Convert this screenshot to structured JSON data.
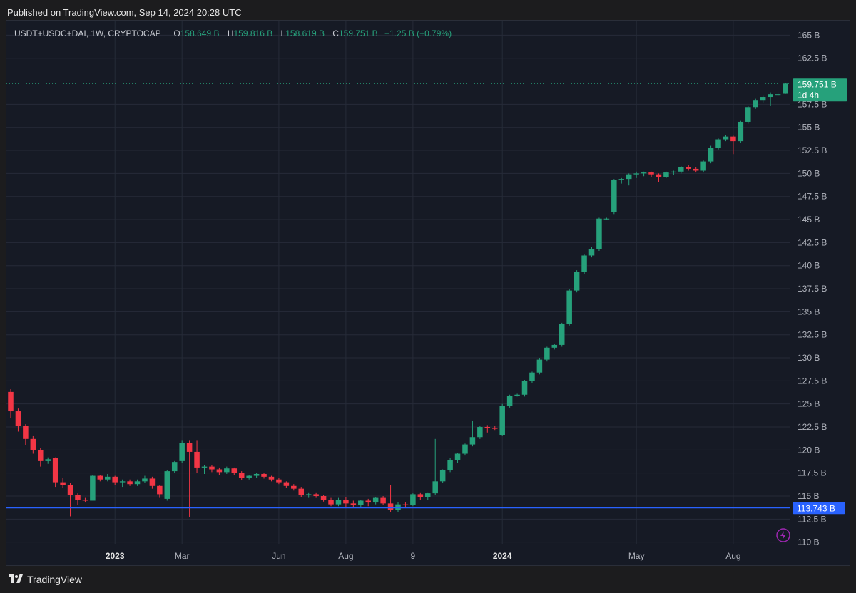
{
  "header": {
    "published": "Published on TradingView.com, Sep 14, 2024 20:28 UTC"
  },
  "legend": {
    "symbol": "USDT+USDC+DAI, 1W, CRYPTOCAP",
    "o_label": "O",
    "o_value": "158.649 B",
    "h_label": "H",
    "h_value": "159.816 B",
    "l_label": "L",
    "l_value": "158.619 B",
    "c_label": "C",
    "c_value": "159.751 B",
    "change": "+1.25 B (+0.79%)"
  },
  "price_badge": {
    "value": "159.751 B",
    "countdown": "1d 4h"
  },
  "hline_badge": {
    "value": "113.743 B"
  },
  "footer": {
    "brand": "TradingView"
  },
  "colors": {
    "up": "#26a17b",
    "down": "#f23645",
    "hline": "#2962ff",
    "grid": "#262b38",
    "axis_text": "#b2b5be"
  },
  "chart_data": {
    "type": "candlestick",
    "units": "B",
    "ylim": [
      107.5,
      166.5
    ],
    "yticks": [
      110,
      112.5,
      115,
      117.5,
      120,
      122.5,
      125,
      127.5,
      130,
      132.5,
      135,
      137.5,
      140,
      142.5,
      145,
      147.5,
      150,
      152.5,
      155,
      157.5,
      162.5,
      165
    ],
    "ytick_labels": [
      "110 B",
      "112.5 B",
      "115 B",
      "117.5 B",
      "120 B",
      "122.5 B",
      "125 B",
      "127.5 B",
      "130 B",
      "132.5 B",
      "135 B",
      "137.5 B",
      "140 B",
      "142.5 B",
      "145 B",
      "147.5 B",
      "150 B",
      "152.5 B",
      "155 B",
      "157.5 B",
      "162.5 B",
      "165 B"
    ],
    "xticks": [
      {
        "label": "2023",
        "index": 14,
        "bold": true
      },
      {
        "label": "Mar",
        "index": 23,
        "bold": false
      },
      {
        "label": "Jun",
        "index": 36,
        "bold": false
      },
      {
        "label": "Aug",
        "index": 45,
        "bold": false
      },
      {
        "label": "9",
        "index": 54,
        "bold": false
      },
      {
        "label": "2024",
        "index": 66,
        "bold": true
      },
      {
        "label": "May",
        "index": 84,
        "bold": false
      },
      {
        "label": "Aug",
        "index": 97,
        "bold": false
      }
    ],
    "hline": 113.743,
    "last_close": 159.751,
    "candles": [
      [
        126.3,
        126.6,
        123.5,
        124.2
      ],
      [
        124.2,
        124.5,
        122.0,
        122.6
      ],
      [
        122.6,
        122.8,
        120.5,
        121.2
      ],
      [
        121.2,
        121.5,
        119.6,
        120.0
      ],
      [
        120.0,
        120.2,
        118.2,
        118.8
      ],
      [
        118.8,
        119.2,
        118.5,
        119.0
      ],
      [
        119.1,
        119.2,
        116.0,
        116.5
      ],
      [
        116.5,
        117.0,
        115.9,
        116.2
      ],
      [
        116.2,
        116.4,
        112.8,
        115.1
      ],
      [
        115.1,
        115.3,
        114.0,
        114.6
      ],
      [
        114.6,
        114.8,
        114.3,
        114.5
      ],
      [
        114.5,
        117.3,
        114.5,
        117.2
      ],
      [
        117.2,
        117.3,
        116.6,
        116.8
      ],
      [
        116.8,
        117.4,
        116.6,
        117.1
      ],
      [
        117.1,
        117.2,
        116.2,
        116.5
      ],
      [
        116.5,
        116.8,
        116.0,
        116.6
      ],
      [
        116.6,
        116.8,
        116.1,
        116.3
      ],
      [
        116.3,
        116.8,
        116.1,
        116.6
      ],
      [
        116.6,
        117.2,
        116.4,
        116.9
      ],
      [
        116.9,
        117.1,
        115.8,
        116.1
      ],
      [
        116.1,
        116.2,
        114.8,
        115.2
      ],
      [
        114.7,
        117.8,
        114.5,
        117.7
      ],
      [
        117.7,
        118.8,
        117.5,
        118.7
      ],
      [
        118.8,
        121.0,
        118.6,
        120.8
      ],
      [
        120.8,
        121.0,
        112.7,
        119.8
      ],
      [
        119.8,
        121.0,
        117.5,
        118.1
      ],
      [
        118.1,
        118.4,
        117.4,
        118.2
      ],
      [
        118.2,
        118.4,
        117.6,
        117.9
      ],
      [
        117.9,
        118.1,
        117.3,
        117.6
      ],
      [
        117.6,
        118.2,
        117.4,
        118.0
      ],
      [
        118.0,
        118.1,
        117.3,
        117.5
      ],
      [
        117.5,
        117.7,
        116.7,
        117.0
      ],
      [
        117.0,
        117.3,
        116.8,
        117.2
      ],
      [
        117.2,
        117.5,
        117.0,
        117.4
      ],
      [
        117.4,
        117.5,
        116.9,
        117.1
      ],
      [
        117.1,
        117.2,
        116.6,
        116.8
      ],
      [
        116.8,
        117.0,
        116.3,
        116.5
      ],
      [
        116.5,
        116.6,
        115.9,
        116.1
      ],
      [
        116.1,
        116.3,
        115.6,
        115.8
      ],
      [
        115.8,
        116.0,
        114.9,
        115.1
      ],
      [
        115.1,
        115.4,
        114.8,
        115.2
      ],
      [
        115.2,
        115.4,
        114.8,
        115.0
      ],
      [
        115.0,
        115.1,
        114.4,
        114.6
      ],
      [
        114.6,
        114.8,
        113.9,
        114.1
      ],
      [
        114.1,
        114.8,
        113.9,
        114.6
      ],
      [
        114.6,
        114.9,
        113.8,
        114.2
      ],
      [
        114.2,
        114.5,
        113.8,
        114.0
      ],
      [
        114.0,
        114.6,
        113.8,
        114.5
      ],
      [
        114.5,
        114.7,
        113.9,
        114.3
      ],
      [
        114.3,
        114.9,
        114.1,
        114.8
      ],
      [
        114.8,
        115.0,
        114.0,
        114.2
      ],
      [
        114.2,
        116.2,
        113.3,
        113.5
      ],
      [
        113.5,
        114.3,
        113.3,
        114.1
      ],
      [
        114.1,
        114.3,
        113.8,
        114.0
      ],
      [
        114.0,
        115.3,
        113.9,
        115.2
      ],
      [
        115.2,
        115.4,
        114.6,
        114.9
      ],
      [
        114.9,
        115.4,
        114.6,
        115.3
      ],
      [
        115.3,
        121.2,
        115.1,
        116.6
      ],
      [
        116.6,
        117.9,
        116.4,
        117.8
      ],
      [
        117.8,
        119.1,
        117.6,
        118.9
      ],
      [
        118.9,
        119.7,
        118.6,
        119.6
      ],
      [
        119.6,
        120.7,
        119.4,
        120.6
      ],
      [
        120.6,
        123.2,
        120.4,
        121.4
      ],
      [
        121.4,
        122.6,
        121.2,
        122.5
      ],
      [
        122.5,
        122.7,
        121.9,
        122.4
      ],
      [
        122.4,
        122.6,
        122.1,
        122.3
      ],
      [
        121.6,
        125.0,
        121.5,
        124.8
      ],
      [
        124.8,
        126.0,
        124.6,
        125.9
      ],
      [
        125.9,
        126.1,
        125.8,
        126.0
      ],
      [
        126.0,
        127.6,
        125.8,
        127.5
      ],
      [
        127.5,
        128.5,
        127.3,
        128.4
      ],
      [
        128.4,
        130.0,
        128.2,
        129.8
      ],
      [
        129.8,
        131.2,
        129.6,
        131.1
      ],
      [
        131.1,
        131.5,
        130.9,
        131.4
      ],
      [
        131.4,
        133.8,
        131.2,
        133.7
      ],
      [
        133.7,
        137.5,
        133.5,
        137.3
      ],
      [
        137.3,
        139.5,
        137.1,
        139.3
      ],
      [
        139.3,
        141.2,
        139.1,
        141.1
      ],
      [
        141.1,
        142.0,
        140.9,
        141.8
      ],
      [
        141.8,
        145.2,
        141.6,
        145.1
      ],
      [
        145.1,
        145.2,
        145.0,
        145.1
      ],
      [
        145.8,
        149.4,
        145.6,
        149.3
      ],
      [
        149.3,
        149.5,
        148.9,
        149.4
      ],
      [
        149.4,
        150.0,
        148.7,
        149.9
      ],
      [
        149.9,
        150.2,
        149.5,
        150.0
      ],
      [
        150.0,
        150.2,
        149.7,
        150.1
      ],
      [
        150.1,
        150.2,
        149.6,
        149.9
      ],
      [
        149.9,
        150.0,
        149.1,
        149.6
      ],
      [
        149.6,
        150.2,
        149.5,
        150.1
      ],
      [
        150.1,
        150.3,
        149.8,
        150.2
      ],
      [
        150.2,
        150.8,
        150.0,
        150.7
      ],
      [
        150.7,
        150.9,
        150.3,
        150.5
      ],
      [
        150.5,
        150.7,
        150.1,
        150.3
      ],
      [
        150.3,
        151.4,
        150.1,
        151.3
      ],
      [
        151.3,
        153.0,
        151.1,
        152.8
      ],
      [
        152.8,
        153.8,
        152.6,
        153.7
      ],
      [
        153.7,
        154.2,
        153.5,
        154.0
      ],
      [
        154.0,
        154.1,
        152.1,
        153.5
      ],
      [
        153.5,
        155.7,
        153.3,
        155.6
      ],
      [
        155.6,
        157.3,
        155.4,
        157.2
      ],
      [
        157.2,
        158.1,
        157.0,
        157.9
      ],
      [
        157.9,
        158.5,
        157.7,
        158.3
      ],
      [
        158.3,
        158.8,
        157.3,
        158.6
      ],
      [
        158.6,
        158.8,
        158.4,
        158.6
      ],
      [
        158.649,
        159.816,
        158.619,
        159.751
      ]
    ]
  }
}
